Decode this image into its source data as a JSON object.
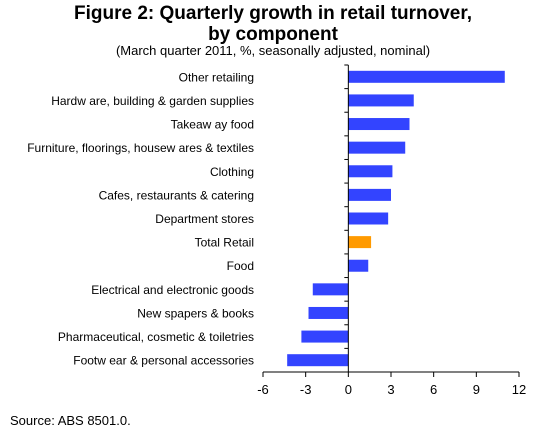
{
  "chart_data": {
    "type": "bar",
    "orientation": "horizontal",
    "title_line1": "Figure 2: Quarterly growth in retail turnover,",
    "title_line2": "by component",
    "subtitle": "(March quarter 2011, %, seasonally adjusted, nominal)",
    "source": "Source: ABS 8501.0.",
    "categories": [
      "Other retailing",
      "Hardw are, building & garden supplies",
      "Takeaw ay food",
      "Furniture, floorings, housew ares & textiles",
      "Clothing",
      "Cafes, restaurants & catering",
      "Department stores",
      "Total Retail",
      "Food",
      "Electrical and electronic goods",
      "New spapers & books",
      "Pharmaceutical, cosmetic & toiletries",
      "Footw ear & personal accessories"
    ],
    "values": [
      11.0,
      4.6,
      4.3,
      4.0,
      3.1,
      3.0,
      2.8,
      1.6,
      1.4,
      -2.5,
      -2.8,
      -3.3,
      -4.3
    ],
    "highlight_category": "Total Retail",
    "xlim": [
      -6,
      12
    ],
    "xticks": [
      -6,
      -3,
      0,
      3,
      6,
      9,
      12
    ],
    "xlabel": "",
    "ylabel": "",
    "grid": false,
    "legend": "none",
    "colors": {
      "bar": "#3344ff",
      "highlight": "#ff9a00",
      "axis": "#000000"
    }
  }
}
